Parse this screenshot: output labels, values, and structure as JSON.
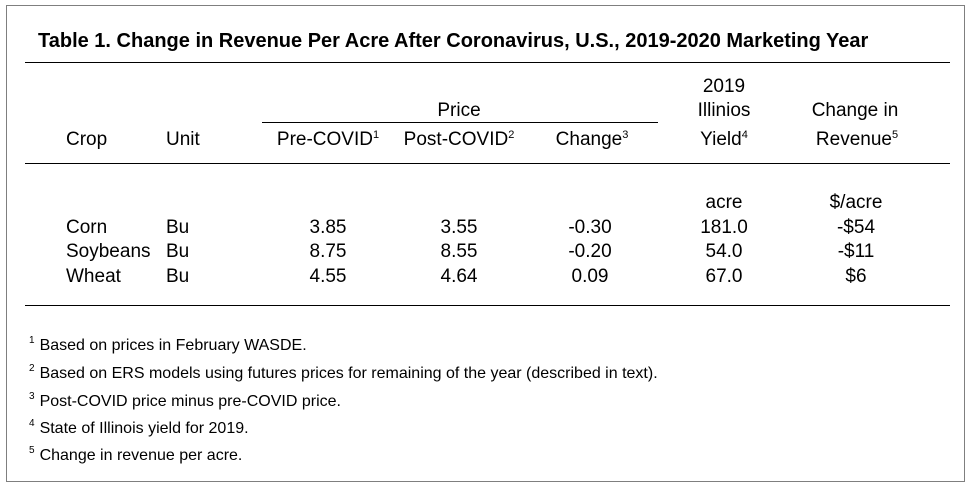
{
  "title": "Table 1.  Change in Revenue Per Acre After Coronavirus, U.S., 2019-2020 Marketing Year",
  "header": {
    "price_group": "Price",
    "crop": "Crop",
    "unit": "Unit",
    "pre_covid": "Pre-COVID",
    "pre_covid_note": "1",
    "post_covid": "Post-COVID",
    "post_covid_note": "2",
    "change": "Change",
    "change_note": "3",
    "yield_line1": "2019",
    "yield_line2": "Illinios",
    "yield_line3": "Yield",
    "yield_note": "4",
    "revenue_line1": "Change in",
    "revenue_line2": "Revenue",
    "revenue_note": "5"
  },
  "units_row": {
    "yield": "acre",
    "revenue": "$/acre"
  },
  "rows": [
    {
      "crop": "Corn",
      "unit": "Bu",
      "pre": "3.85",
      "post": "3.55",
      "change": "-0.30",
      "yield": "181.0",
      "revenue": "-$54"
    },
    {
      "crop": "Soybeans",
      "unit": "Bu",
      "pre": "8.75",
      "post": "8.55",
      "change": "-0.20",
      "yield": "54.0",
      "revenue": "-$11"
    },
    {
      "crop": "Wheat",
      "unit": "Bu",
      "pre": "4.55",
      "post": "4.64",
      "change": "0.09",
      "yield": "67.0",
      "revenue": "$6"
    }
  ],
  "footnotes": [
    {
      "mark": "1",
      "text": "Based on prices in February WASDE."
    },
    {
      "mark": "2",
      "text": "Based on ERS models using futures prices for remaining of the year (described in text)."
    },
    {
      "mark": "3",
      "text": "Post-COVID price minus pre-COVID price."
    },
    {
      "mark": "4",
      "text": "State of Illinois yield for 2019."
    },
    {
      "mark": "5",
      "text": "Change in revenue per acre."
    }
  ]
}
